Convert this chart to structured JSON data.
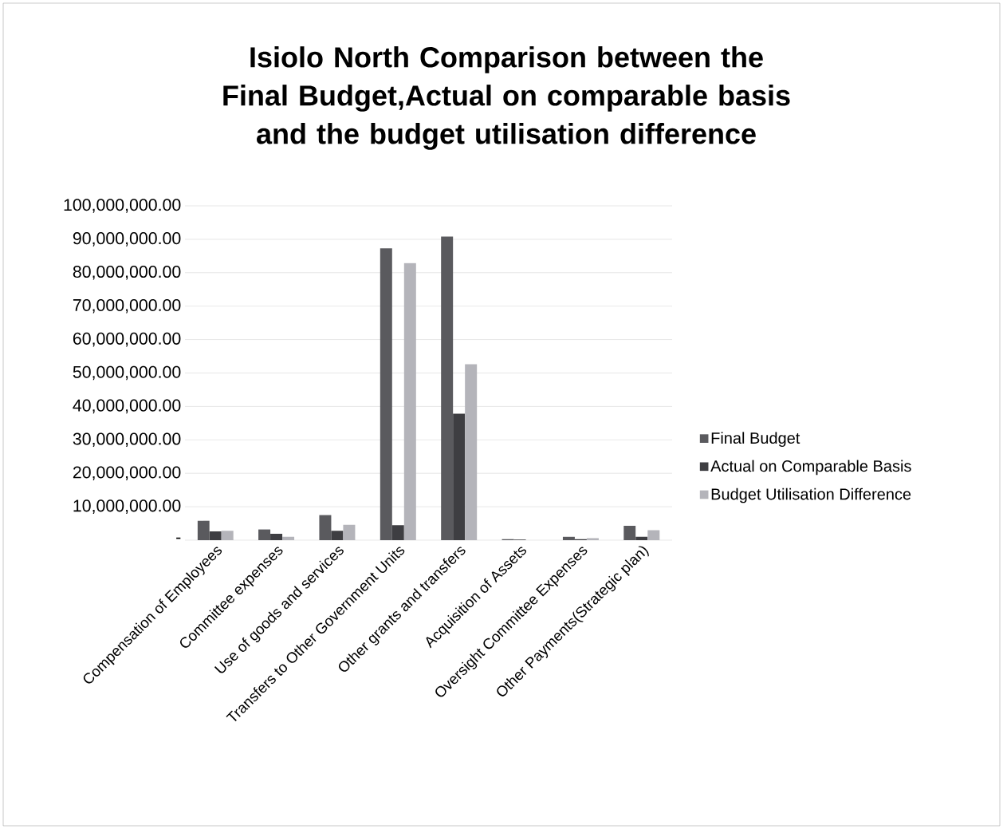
{
  "chart_data": {
    "type": "bar",
    "title": "Isiolo North  Comparison between the Final Budget,Actual on comparable basis and the budget utilisation difference",
    "categories": [
      "Compensation of Employees",
      "Committee expenses",
      "Use of goods and services",
      "Transfers to Other Government Units",
      "Other grants and transfers",
      "Acquisition of Assets",
      "Oversight Committee Expenses",
      "Other Payments(Strategic plan)"
    ],
    "series": [
      {
        "name": "Final Budget",
        "color": "#5a5a5e",
        "values": [
          5800000,
          3200000,
          7500000,
          87300000,
          90800000,
          300000,
          1000000,
          4300000
        ]
      },
      {
        "name": "Actual on Comparable Basis",
        "color": "#3e3e42",
        "values": [
          2600000,
          1900000,
          2800000,
          4500000,
          37800000,
          200000,
          300000,
          1000000
        ]
      },
      {
        "name": "Budget Utilisation Difference",
        "color": "#b4b4ba",
        "values": [
          2800000,
          1000000,
          4600000,
          82900000,
          52600000,
          null,
          600000,
          3000000
        ]
      }
    ],
    "ylim": [
      0,
      100000000
    ],
    "yticks": [
      {
        "value": 0,
        "label": "-"
      },
      {
        "value": 10000000,
        "label": "10,000,000.00"
      },
      {
        "value": 20000000,
        "label": "20,000,000.00"
      },
      {
        "value": 30000000,
        "label": "30,000,000.00"
      },
      {
        "value": 40000000,
        "label": "40,000,000.00"
      },
      {
        "value": 50000000,
        "label": "50,000,000.00"
      },
      {
        "value": 60000000,
        "label": "60,000,000.00"
      },
      {
        "value": 70000000,
        "label": "70,000,000.00"
      },
      {
        "value": 80000000,
        "label": "80,000,000.00"
      },
      {
        "value": 90000000,
        "label": "90,000,000.00"
      },
      {
        "value": 100000000,
        "label": "100,000,000.00"
      }
    ],
    "grid": "y",
    "legend": "right"
  }
}
